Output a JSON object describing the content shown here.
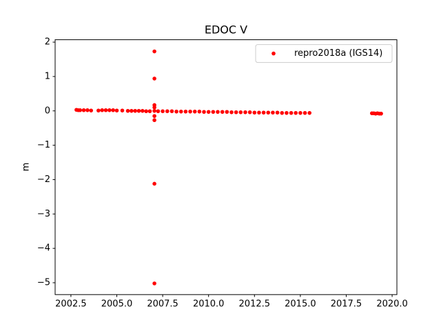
{
  "chart_data": {
    "type": "scatter",
    "title": "EDOC V",
    "y_label": "m",
    "x": [
      2002.8,
      2002.9,
      2003.0,
      2003.2,
      2003.4,
      2003.6,
      2004.0,
      2004.2,
      2004.4,
      2004.6,
      2004.8,
      2005.0,
      2005.3,
      2005.6,
      2005.8,
      2006.0,
      2006.2,
      2006.4,
      2006.6,
      2006.8,
      2007.05,
      2007.05,
      2007.05,
      2007.05,
      2007.05,
      2007.05,
      2007.05,
      2007.05,
      2007.05,
      2007.25,
      2007.5,
      2007.75,
      2008.0,
      2008.25,
      2008.5,
      2008.75,
      2009.0,
      2009.25,
      2009.5,
      2009.75,
      2010.0,
      2010.25,
      2010.5,
      2010.75,
      2011.0,
      2011.25,
      2011.5,
      2011.75,
      2012.0,
      2012.25,
      2012.5,
      2012.75,
      2013.0,
      2013.25,
      2013.5,
      2013.75,
      2014.0,
      2014.25,
      2014.5,
      2014.75,
      2015.0,
      2015.25,
      2015.5,
      2018.9,
      2019.0,
      2019.1,
      2019.2,
      2019.3,
      2019.4
    ],
    "series": [
      {
        "name": "repro2018a (IGS14)",
        "color": "#ff0000",
        "values": [
          0.03,
          0.02,
          0.02,
          0.02,
          0.02,
          0.01,
          0.01,
          0.02,
          0.02,
          0.02,
          0.02,
          0.01,
          0.01,
          0.0,
          0.0,
          0.0,
          0.0,
          0.0,
          -0.01,
          -0.01,
          0.0,
          0.17,
          0.1,
          -0.15,
          -0.27,
          1.73,
          0.94,
          -2.12,
          -5.02,
          -0.01,
          -0.01,
          -0.01,
          -0.01,
          -0.02,
          -0.02,
          -0.02,
          -0.02,
          -0.02,
          -0.02,
          -0.03,
          -0.03,
          -0.03,
          -0.03,
          -0.03,
          -0.03,
          -0.04,
          -0.04,
          -0.04,
          -0.04,
          -0.04,
          -0.05,
          -0.05,
          -0.05,
          -0.05,
          -0.05,
          -0.05,
          -0.06,
          -0.06,
          -0.06,
          -0.06,
          -0.06,
          -0.06,
          -0.06,
          -0.07,
          -0.07,
          -0.08,
          -0.07,
          -0.08,
          -0.08
        ]
      }
    ],
    "xlim": [
      2001.64,
      2020.26
    ],
    "ylim": [
      -5.345,
      2.07
    ],
    "xticks": [
      {
        "value": 2002.5,
        "label": "2002.5"
      },
      {
        "value": 2005.0,
        "label": "2005.0"
      },
      {
        "value": 2007.5,
        "label": "2007.5"
      },
      {
        "value": 2010.0,
        "label": "2010.0"
      },
      {
        "value": 2012.5,
        "label": "2012.5"
      },
      {
        "value": 2015.0,
        "label": "2015.0"
      },
      {
        "value": 2017.5,
        "label": "2017.5"
      },
      {
        "value": 2020.0,
        "label": "2020.0"
      }
    ],
    "yticks": [
      {
        "value": -5,
        "label": "−5"
      },
      {
        "value": -4,
        "label": "−4"
      },
      {
        "value": -3,
        "label": "−3"
      },
      {
        "value": -2,
        "label": "−2"
      },
      {
        "value": -1,
        "label": "−1"
      },
      0,
      1,
      2
    ],
    "legend": "upper right",
    "grid": false
  }
}
